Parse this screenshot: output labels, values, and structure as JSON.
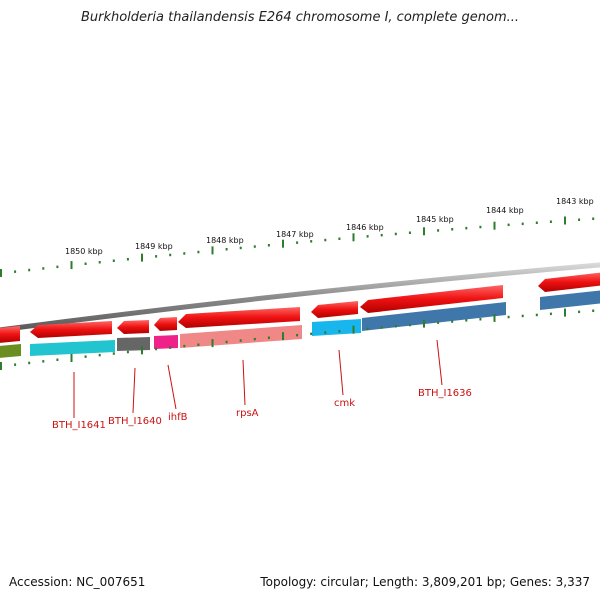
{
  "title": "Burkholderia thailandensis E264 chromosome I, complete genom...",
  "footer": {
    "accession": "Accession: NC_007651",
    "summary": "Topology: circular; Length: 3,809,201 bp; Genes: 3,337"
  },
  "scale_labels": [
    "1850 kbp",
    "1849 kbp",
    "1848 kbp",
    "1847 kbp",
    "1846 kbp",
    "1845 kbp",
    "1844 kbp",
    "1843 kbp"
  ],
  "gene_labels": [
    "BTH_I1641",
    "BTH_I1640",
    "ihfB",
    "rpsA",
    "cmk",
    "BTH_I1636"
  ],
  "colors": {
    "red_feature": "#ee1111",
    "teal": "#22c4d0",
    "gray": "#666666",
    "magenta": "#ee2288",
    "pink": "#f08888",
    "cyan": "#19b6ee",
    "steel": "#3f77aa",
    "olive": "#6b8e23",
    "tick_green": "#2e7d2e",
    "backbone": "#8a8a8a",
    "label_red": "#cc1111"
  }
}
